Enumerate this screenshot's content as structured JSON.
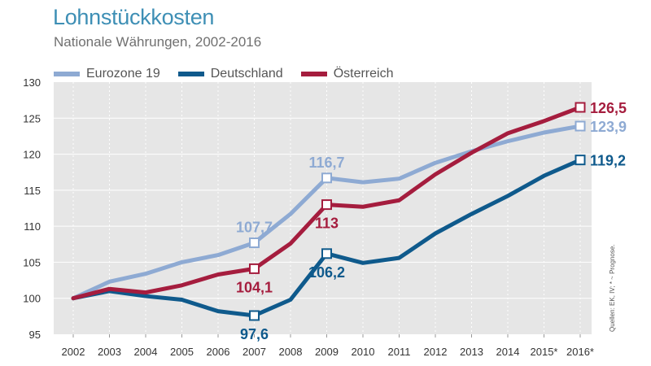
{
  "title": "Lohnstückkosten",
  "subtitle": "Nationale Währungen, 2002-2016",
  "source": "Quellen: EK, IV; * ~ Prognose.",
  "chart_data": {
    "type": "line",
    "categories": [
      "2002",
      "2003",
      "2004",
      "2005",
      "2006",
      "2007",
      "2008",
      "2009",
      "2010",
      "2011",
      "2012",
      "2013",
      "2014",
      "2015*",
      "2016*"
    ],
    "ylim": [
      95,
      130
    ],
    "yticks": [
      95,
      100,
      105,
      110,
      115,
      120,
      125,
      130
    ],
    "grid": true,
    "legend_position": "top-left",
    "series": [
      {
        "name": "Eurozone 19",
        "color": "#8eaad3",
        "values": [
          100,
          102.3,
          103.4,
          105,
          106,
          107.7,
          111.7,
          116.7,
          116.1,
          116.6,
          118.8,
          120.4,
          121.8,
          123,
          123.9
        ]
      },
      {
        "name": "Deutschland",
        "color": "#0f5a8c",
        "values": [
          100,
          101,
          100.3,
          99.8,
          98.2,
          97.6,
          99.8,
          106.2,
          104.9,
          105.6,
          109,
          111.7,
          114.2,
          117,
          119.2
        ]
      },
      {
        "name": "Österreich",
        "color": "#a51d3e",
        "values": [
          100,
          101.3,
          100.8,
          101.8,
          103.3,
          104.1,
          107.6,
          113,
          112.7,
          113.6,
          117.2,
          120.2,
          122.9,
          124.6,
          126.5
        ]
      }
    ],
    "annotations": [
      {
        "series": 0,
        "index": 5,
        "label": "107,7",
        "position": "above"
      },
      {
        "series": 0,
        "index": 7,
        "label": "116,7",
        "position": "above"
      },
      {
        "series": 0,
        "index": 14,
        "label": "123,9",
        "position": "right"
      },
      {
        "series": 1,
        "index": 5,
        "label": "97,6",
        "position": "below"
      },
      {
        "series": 1,
        "index": 7,
        "label": "106,2",
        "position": "below"
      },
      {
        "series": 1,
        "index": 14,
        "label": "119,2",
        "position": "right"
      },
      {
        "series": 2,
        "index": 5,
        "label": "104,1",
        "position": "below"
      },
      {
        "series": 2,
        "index": 7,
        "label": "113",
        "position": "below"
      },
      {
        "series": 2,
        "index": 14,
        "label": "126,5",
        "position": "right"
      }
    ]
  }
}
